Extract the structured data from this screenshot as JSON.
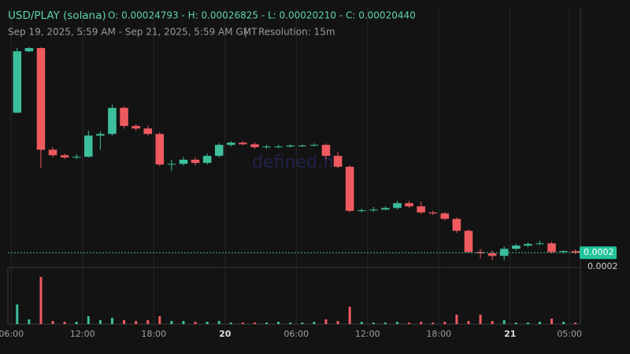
{
  "chart_data": {
    "type": "candlestick",
    "title": "USD/PLAY (solana)",
    "ohlc_summary": "O: 0.00024793 - H: 0.00026825 - L: 0.00020210 - C: 0.00020440",
    "subtitle": "Sep 19, 2025, 5:59 AM - Sep 21, 2025, 5:59 AM GMT",
    "separator": "|",
    "resolution": "Resolution: 15m",
    "watermark": "defined.fi",
    "up_color": "#3dbf9c",
    "down_color": "#ef5a5f",
    "x": [
      "2025-09-19T06:00",
      "2025-09-19T07:00",
      "2025-09-19T08:00",
      "2025-09-19T09:00",
      "2025-09-19T10:00",
      "2025-09-19T11:00",
      "2025-09-19T12:00",
      "2025-09-19T13:00",
      "2025-09-19T14:00",
      "2025-09-19T15:00",
      "2025-09-19T16:00",
      "2025-09-19T17:00",
      "2025-09-19T18:00",
      "2025-09-19T19:00",
      "2025-09-19T20:00",
      "2025-09-19T21:00",
      "2025-09-19T22:00",
      "2025-09-19T23:00",
      "2025-09-20T00:00",
      "2025-09-20T01:00",
      "2025-09-20T02:00",
      "2025-09-20T03:00",
      "2025-09-20T04:00",
      "2025-09-20T05:00",
      "2025-09-20T06:00",
      "2025-09-20T07:00",
      "2025-09-20T08:00",
      "2025-09-20T09:00",
      "2025-09-20T10:00",
      "2025-09-20T11:00",
      "2025-09-20T12:00",
      "2025-09-20T13:00",
      "2025-09-20T14:00",
      "2025-09-20T15:00",
      "2025-09-20T16:00",
      "2025-09-20T17:00",
      "2025-09-20T18:00",
      "2025-09-20T19:00",
      "2025-09-20T20:00",
      "2025-09-20T21:00",
      "2025-09-20T22:00",
      "2025-09-20T23:00",
      "2025-09-21T00:00",
      "2025-09-21T01:00",
      "2025-09-21T02:00",
      "2025-09-21T03:00",
      "2025-09-21T04:00",
      "2025-09-21T05:00"
    ],
    "open": [
      0.0002479,
      0.000267,
      0.000268,
      0.0002364,
      0.0002347,
      0.000234,
      0.0002342,
      0.0002408,
      0.0002413,
      0.0002494,
      0.0002438,
      0.000243,
      0.0002413,
      0.0002318,
      0.000232,
      0.0002333,
      0.0002323,
      0.0002345,
      0.0002379,
      0.0002386,
      0.0002381,
      0.0002372,
      0.0002374,
      0.0002374,
      0.0002377,
      0.0002377,
      0.0002379,
      0.0002345,
      0.0002311,
      0.0002174,
      0.0002176,
      0.0002178,
      0.0002183,
      0.0002198,
      0.0002188,
      0.0002169,
      0.0002166,
      0.0002149,
      0.0002112,
      0.0002046,
      0.0002042,
      0.0002034,
      0.0002056,
      0.0002066,
      0.0002071,
      0.0002073,
      0.0002046,
      0.0002049
    ],
    "high": [
      0.000268,
      0.0002683,
      0.0002682,
      0.0002372,
      0.0002352,
      0.000235,
      0.0002423,
      0.0002421,
      0.0002504,
      0.0002499,
      0.0002443,
      0.0002438,
      0.0002418,
      0.0002333,
      0.0002342,
      0.000234,
      0.0002352,
      0.0002384,
      0.0002391,
      0.0002391,
      0.0002386,
      0.0002379,
      0.0002379,
      0.0002381,
      0.0002381,
      0.0002384,
      0.0002384,
      0.0002357,
      0.0002315,
      0.0002181,
      0.0002186,
      0.0002188,
      0.0002205,
      0.0002205,
      0.0002203,
      0.0002174,
      0.0002171,
      0.0002154,
      0.0002117,
      0.0002056,
      0.0002051,
      0.0002064,
      0.0002071,
      0.0002076,
      0.0002081,
      0.0002078,
      0.0002051,
      0.0002054
    ],
    "low": [
      0.0002479,
      0.0002667,
      0.0002306,
      0.000234,
      0.0002335,
      0.0002335,
      0.000234,
      0.0002364,
      0.0002408,
      0.000243,
      0.0002423,
      0.0002408,
      0.0002313,
      0.0002298,
      0.0002315,
      0.0002315,
      0.0002318,
      0.000234,
      0.0002374,
      0.0002377,
      0.0002367,
      0.0002367,
      0.0002369,
      0.0002372,
      0.0002372,
      0.0002374,
      0.0002335,
      0.0002306,
      0.0002169,
      0.0002169,
      0.0002171,
      0.0002176,
      0.0002178,
      0.0002183,
      0.0002164,
      0.0002161,
      0.0002144,
      0.0002105,
      0.0002042,
      0.0002027,
      0.0002021,
      0.0002021,
      0.0002051,
      0.0002061,
      0.0002068,
      0.0002042,
      0.0002042,
      0.0002039
    ],
    "close": [
      0.000267,
      0.000268,
      0.0002364,
      0.0002347,
      0.000234,
      0.0002342,
      0.0002408,
      0.0002413,
      0.0002494,
      0.0002438,
      0.000243,
      0.0002413,
      0.0002318,
      0.000232,
      0.0002333,
      0.0002323,
      0.0002345,
      0.0002379,
      0.0002386,
      0.0002381,
      0.0002372,
      0.0002374,
      0.0002374,
      0.0002377,
      0.0002377,
      0.0002379,
      0.0002345,
      0.0002311,
      0.0002174,
      0.0002176,
      0.0002178,
      0.0002183,
      0.0002198,
      0.0002188,
      0.0002169,
      0.0002166,
      0.0002149,
      0.0002112,
      0.0002046,
      0.0002042,
      0.0002034,
      0.0002056,
      0.0002066,
      0.0002071,
      0.0002073,
      0.0002046,
      0.0002049,
      0.0002044
    ],
    "volume": [
      25,
      6,
      60,
      4,
      3,
      3,
      10,
      5,
      8,
      5,
      4,
      5,
      10,
      4,
      4,
      3,
      3,
      4,
      2,
      2,
      2,
      2,
      3,
      2,
      2,
      3,
      6,
      4,
      22,
      3,
      2,
      2,
      3,
      2,
      3,
      2,
      3,
      12,
      4,
      12,
      4,
      5,
      2,
      2,
      3,
      7,
      3,
      2
    ],
    "xlim": [
      "2025-09-19T05:59",
      "2025-09-21T05:59"
    ],
    "xticks": [
      {
        "value": "2025-09-19T06:00",
        "label": "06:00"
      },
      {
        "value": "2025-09-19T12:00",
        "label": "12:00"
      },
      {
        "value": "2025-09-19T18:00",
        "label": "18:00"
      },
      {
        "value": "2025-09-20T00:00",
        "label": "20"
      },
      {
        "value": "2025-09-20T06:00",
        "label": "06:00"
      },
      {
        "value": "2025-09-20T12:00",
        "label": "12:00"
      },
      {
        "value": "2025-09-20T18:00",
        "label": "18:00"
      },
      {
        "value": "2025-09-21T00:00",
        "label": "21"
      },
      {
        "value": "2025-09-21T05:00",
        "label": "05:00"
      }
    ],
    "ylim": [
      0.0001998,
      0.0002805
    ],
    "yticks": [
      0.0002
    ],
    "price_tag": {
      "value": 0.0002044,
      "label": "0.0002"
    }
  }
}
